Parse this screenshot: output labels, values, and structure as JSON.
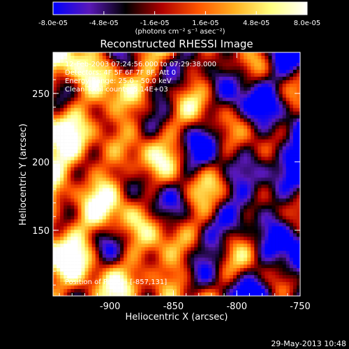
{
  "colorbar": {
    "tick_labels": [
      "-8.0e-05",
      "-4.8e-05",
      "-1.6e-05",
      "1.6e-05",
      "4.8e-05",
      "8.0e-05"
    ],
    "range": [
      -8e-05,
      8e-05
    ],
    "colormap": [
      "#0000ff",
      "#5a18b8",
      "#000000",
      "#b00000",
      "#ff5500",
      "#ffb020",
      "#ffff80",
      "#ffffff"
    ],
    "unit_label": "(photons cm⁻² s⁻¹ asec⁻²)"
  },
  "chart_data": {
    "type": "heatmap",
    "title": "Reconstructed RHESSI Image",
    "xlabel": "Heliocentric X (arcsec)",
    "ylabel": "Heliocentric Y (arcsec)",
    "xlim": [
      -945,
      -750
    ],
    "ylim": [
      102,
      280
    ],
    "x_ticks": [
      -900,
      -850,
      -800,
      -750
    ],
    "y_ticks": [
      150,
      200,
      250
    ],
    "x_tick_labels": [
      "-900",
      "-850",
      "-800",
      "-750"
    ],
    "y_tick_labels": [
      "150",
      "200",
      "250"
    ],
    "annotations": [
      "12-Feb-2003 07:24:56.000 to 07:29:38.000",
      "Detectors: 4F 5F 6F 7F 8F, Att 0",
      "Energy Range: 25.0 - 50.0 keV",
      "Clean     Total counts: 5.14E+03"
    ],
    "peak_label": "Position of Peak = [-857,131]",
    "peak": [
      -857,
      131
    ]
  },
  "footer": {
    "date": "29-May-2013 10:48"
  }
}
